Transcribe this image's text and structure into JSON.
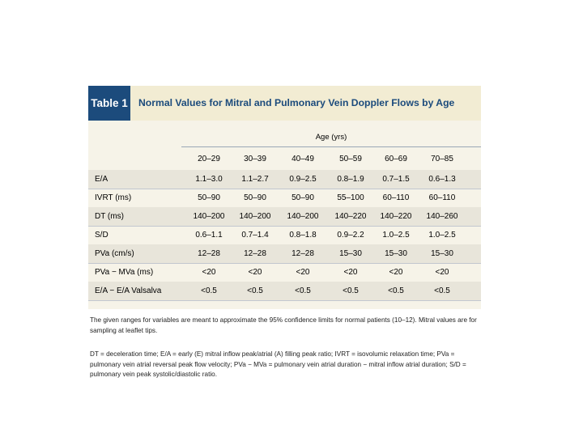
{
  "table": {
    "label": "Table 1",
    "title": "Normal Values for Mitral and Pulmonary Vein Doppler Flows by Age",
    "age_header": "Age (yrs)",
    "columns": [
      "20–29",
      "30–39",
      "40–49",
      "50–59",
      "60–69",
      "70–85"
    ],
    "rows": [
      {
        "label": "E/A",
        "values": [
          "1.1–3.0",
          "1.1–2.7",
          "0.9–2.5",
          "0.8–1.9",
          "0.7–1.5",
          "0.6–1.3"
        ]
      },
      {
        "label": "IVRT (ms)",
        "values": [
          "50–90",
          "50–90",
          "50–90",
          "55–100",
          "60–110",
          "60–110"
        ]
      },
      {
        "label": "DT (ms)",
        "values": [
          "140–200",
          "140–200",
          "140–200",
          "140–220",
          "140–220",
          "140–260"
        ]
      },
      {
        "label": "S/D",
        "values": [
          "0.6–1.1",
          "0.7–1.4",
          "0.8–1.8",
          "0.9–2.2",
          "1.0–2.5",
          "1.0–2.5"
        ]
      },
      {
        "label": "PVa (cm/s)",
        "values": [
          "12–28",
          "12–28",
          "12–28",
          "15–30",
          "15–30",
          "15–30"
        ]
      },
      {
        "label": "PVa − MVa (ms)",
        "values": [
          "<20",
          "<20",
          "<20",
          "<20",
          "<20",
          "<20"
        ]
      },
      {
        "label": "E/A − E/A Valsalva",
        "values": [
          "<0.5",
          "<0.5",
          "<0.5",
          "<0.5",
          "<0.5",
          "<0.5"
        ]
      }
    ]
  },
  "footnotes": {
    "note1": "The given ranges for variables are meant to approximate the 95% confidence limits for normal patients (10–12). Mitral values are for sampling at leaflet tips.",
    "note2": "DT = deceleration time; E/A = early (E) mitral inflow peak/atrial (A) filling peak ratio; IVRT = isovolumic relaxation time; PVa = pulmonary vein atrial reversal peak flow velocity; PVa − MVa = pulmonary vein atrial duration − mitral inflow atrial duration; S/D = pulmonary vein peak systolic/diastolic ratio."
  },
  "colors": {
    "label_bg": "#1c4b7c",
    "title_text": "#1c4b7c",
    "title_bar_bg": "#f2ecd3",
    "alt_row_bg": "#e8e5da"
  }
}
